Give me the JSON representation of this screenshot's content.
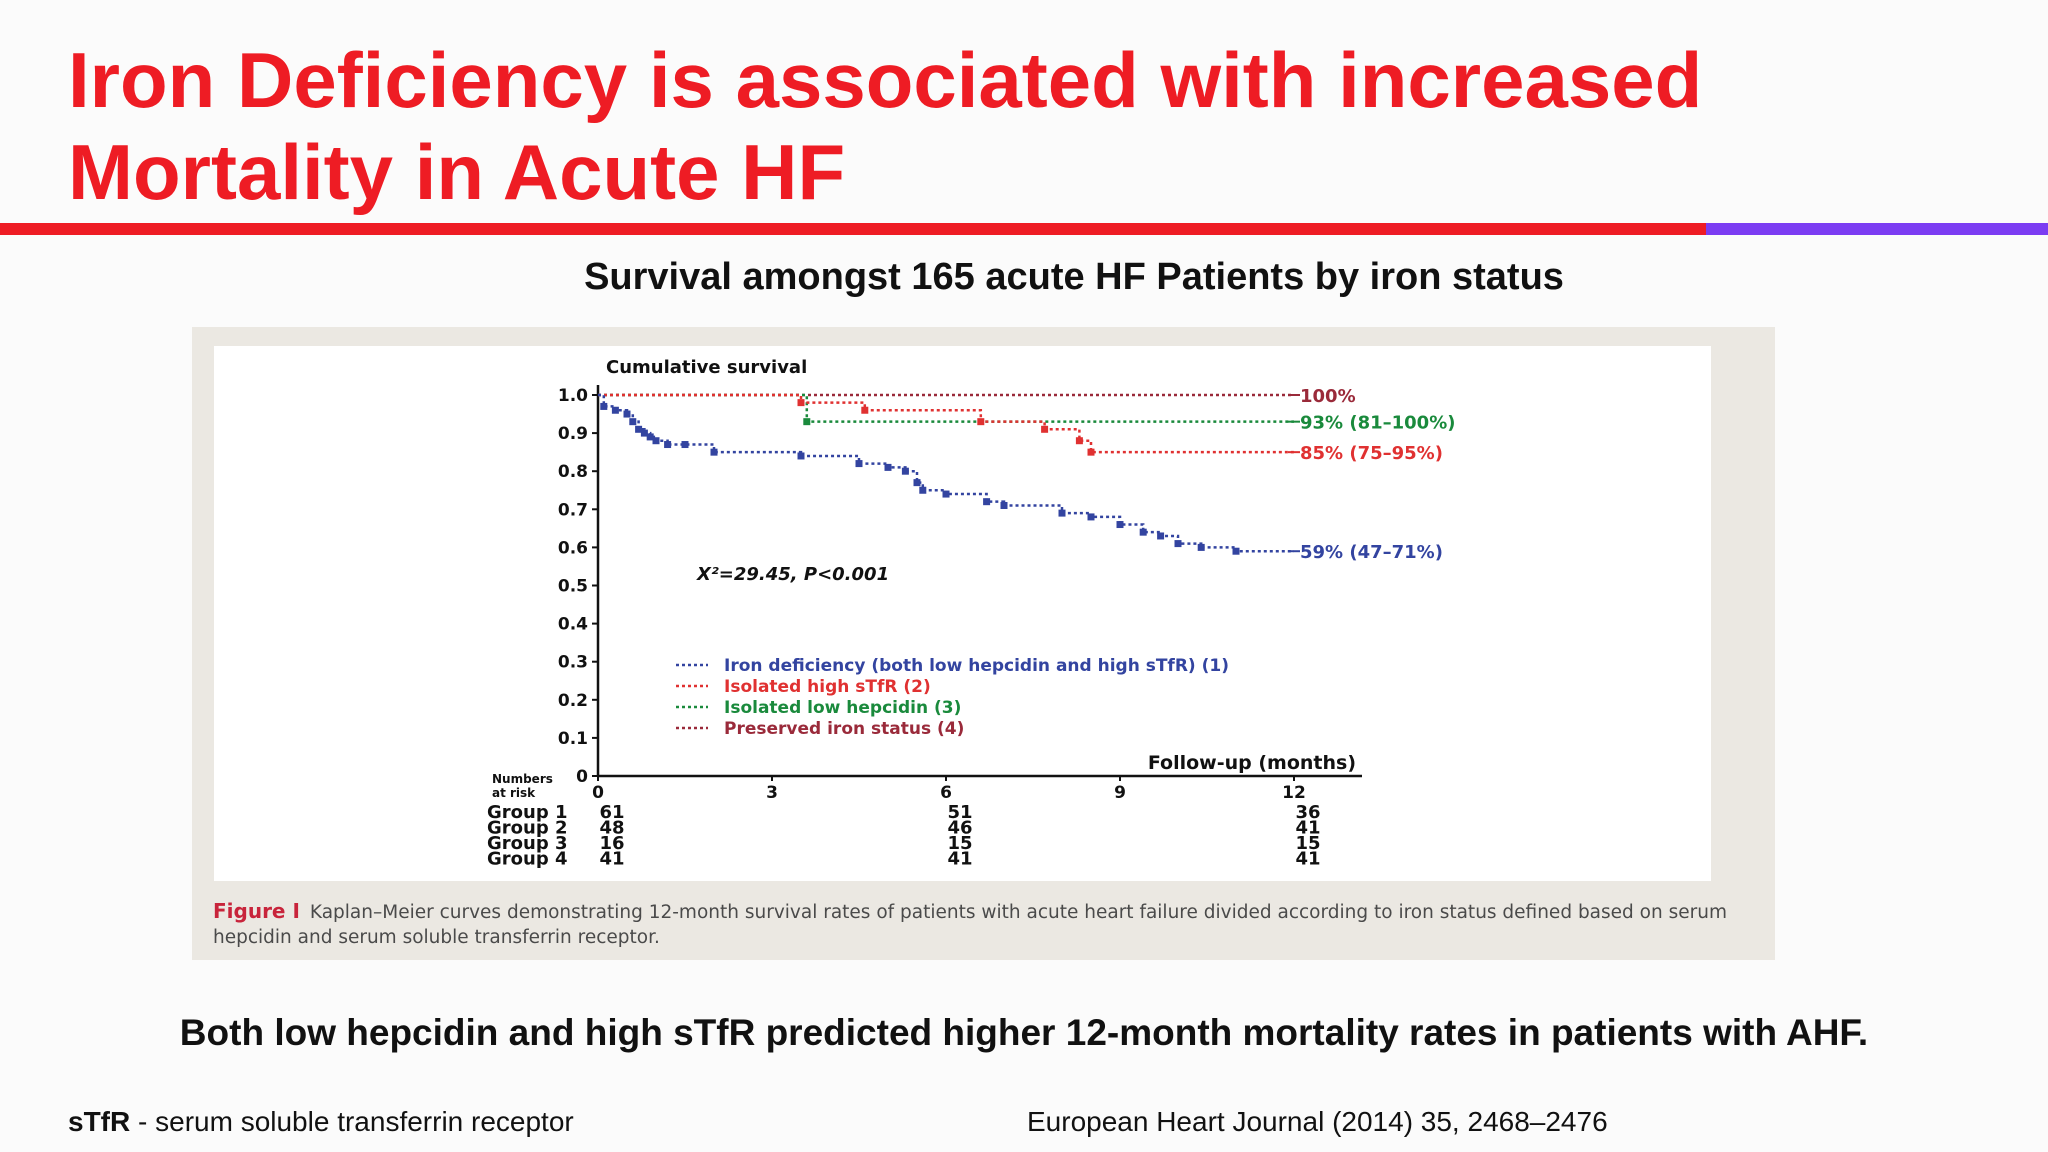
{
  "slide": {
    "title_line1": "Iron Deficiency is associated with increased",
    "title_line2": "Mortality in Acute HF",
    "subtitle": "Survival amongst 165 acute HF Patients by iron status",
    "conclusion": "Both low hepcidin and high sTfR predicted higher 12-month mortality rates in patients with AHF.",
    "footnote_abbr": "sTfR",
    "footnote_text": " - serum soluble transferrin receptor",
    "reference": "European Heart Journal (2014) 35, 2468–2476",
    "colors": {
      "title": "#ee1c24",
      "rule_red": "#ee1c24",
      "rule_purple": "#7b3cf2"
    }
  },
  "figure": {
    "caption_label": "Figure I",
    "caption_text": "Kaplan–Meier curves demonstrating 12-month survival rates of patients with acute heart failure divided according to iron status defined based on serum hepcidin and serum soluble transferrin receptor."
  },
  "chart_data": {
    "type": "line",
    "ylabel": "Cumulative survival",
    "xlabel": "Follow-up (months)",
    "xlim": [
      0,
      12
    ],
    "ylim": [
      0,
      1.0
    ],
    "x_ticks": [
      "0",
      "3",
      "6",
      "9",
      "12"
    ],
    "y_ticks": [
      "0",
      "0.1",
      "0.2",
      "0.3",
      "0.4",
      "0.5",
      "0.6",
      "0.7",
      "0.8",
      "0.9",
      "1.0"
    ],
    "annotation": "X²=29.45, P<0.001",
    "legend_position": "lower-left inside plot",
    "series": [
      {
        "name": "Iron deficiency (both low hepcidin and high sTfR) (1)",
        "color": "#3344a0",
        "end_label": "59% (47–71%)",
        "x": [
          0,
          0.1,
          0.3,
          0.5,
          0.6,
          0.7,
          0.8,
          0.9,
          1.0,
          1.2,
          1.5,
          2.0,
          3.5,
          4.5,
          5.0,
          5.3,
          5.5,
          5.6,
          6.0,
          6.7,
          7.0,
          8.0,
          8.5,
          9.0,
          9.4,
          9.7,
          10.0,
          10.4,
          11.0,
          12.0
        ],
        "y": [
          1.0,
          0.97,
          0.96,
          0.95,
          0.93,
          0.91,
          0.9,
          0.89,
          0.88,
          0.87,
          0.87,
          0.85,
          0.84,
          0.82,
          0.81,
          0.8,
          0.77,
          0.75,
          0.74,
          0.72,
          0.71,
          0.69,
          0.68,
          0.66,
          0.64,
          0.63,
          0.61,
          0.6,
          0.59,
          0.59
        ]
      },
      {
        "name": "Isolated high sTfR (2)",
        "color": "#e03131",
        "end_label": "85% (75–95%)",
        "x": [
          0,
          3.5,
          4.6,
          6.6,
          7.7,
          8.3,
          8.5,
          12.0
        ],
        "y": [
          1.0,
          0.98,
          0.96,
          0.93,
          0.91,
          0.88,
          0.85,
          0.85
        ]
      },
      {
        "name": "Isolated low hepcidin (3)",
        "color": "#1a8a3c",
        "end_label": "93% (81–100%)",
        "x": [
          0,
          3.6,
          12.0
        ],
        "y": [
          1.0,
          0.93,
          0.93
        ]
      },
      {
        "name": "Preserved iron status (4)",
        "color": "#9a2a3a",
        "end_label": "100%",
        "x": [
          0,
          12.0
        ],
        "y": [
          1.0,
          1.0
        ]
      }
    ],
    "risk_table": {
      "header_line1": "Numbers",
      "header_line2": "at risk",
      "times": [
        0,
        6,
        12
      ],
      "rows": [
        {
          "group": "Group 1",
          "values": [
            "61",
            "51",
            "36"
          ]
        },
        {
          "group": "Group 2",
          "values": [
            "48",
            "46",
            "41"
          ]
        },
        {
          "group": "Group 3",
          "values": [
            "16",
            "15",
            "15"
          ]
        },
        {
          "group": "Group 4",
          "values": [
            "41",
            "41",
            "41"
          ]
        }
      ]
    }
  }
}
